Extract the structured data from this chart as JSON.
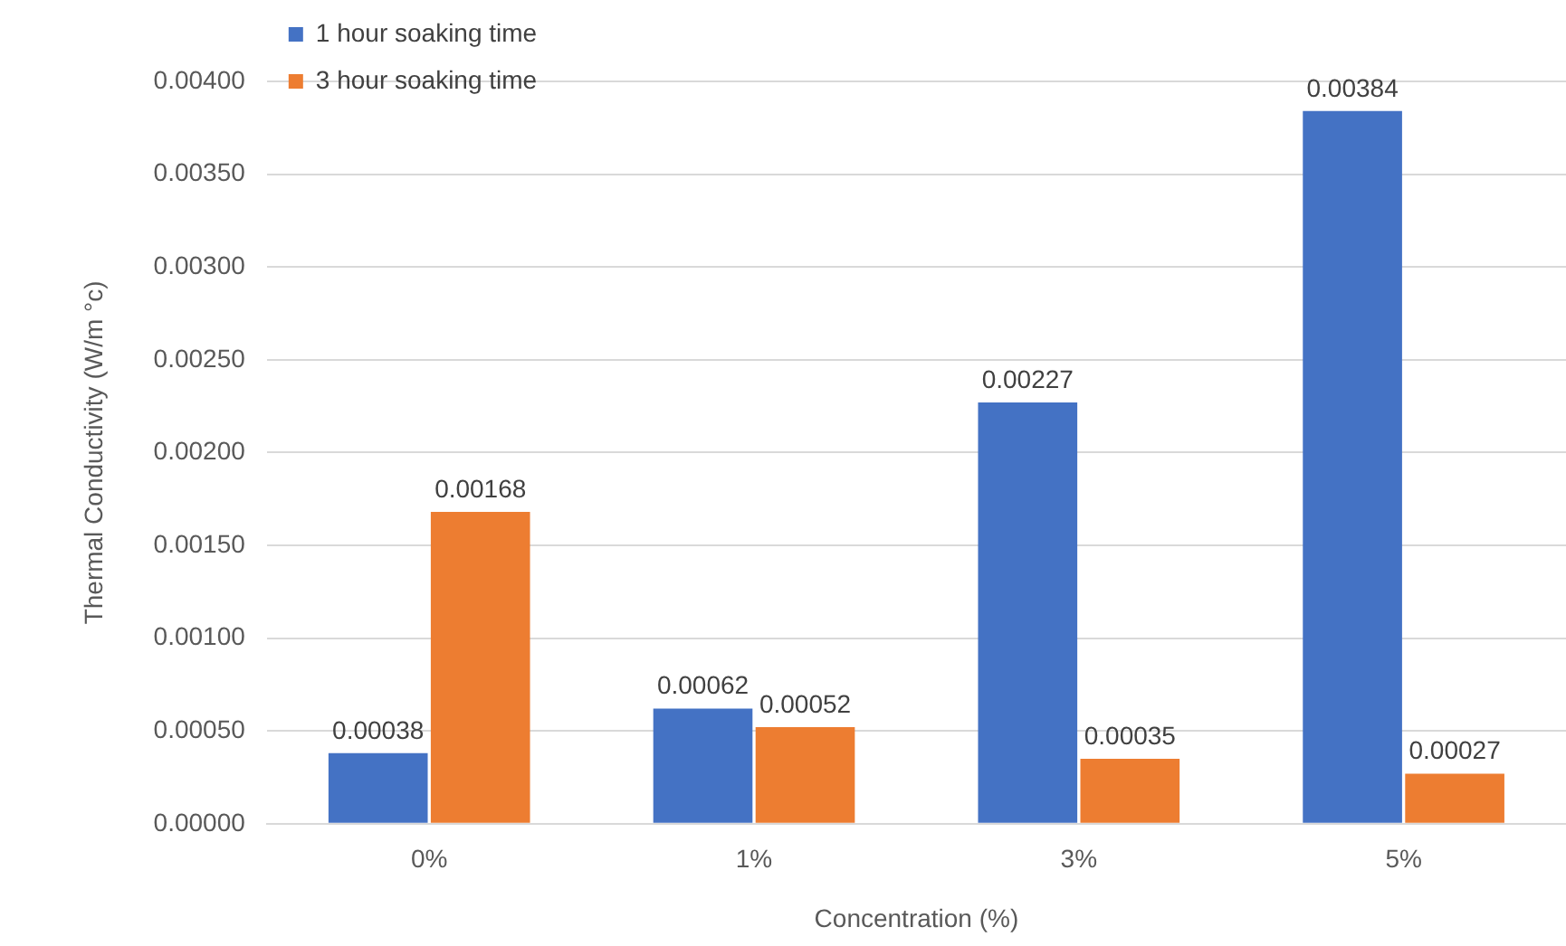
{
  "chart_data": {
    "type": "bar",
    "xlabel": "Concentration (%)",
    "ylabel": "Thermal Conductivity (W/m °c)",
    "categories": [
      "0%",
      "1%",
      "3%",
      "5%"
    ],
    "series": [
      {
        "name": "1 hour soaking time",
        "color": "#4472c4",
        "values": [
          0.00038,
          0.00062,
          0.00227,
          0.00384
        ]
      },
      {
        "name": "3 hour soaking time",
        "color": "#ed7d31",
        "values": [
          0.00168,
          0.00052,
          0.00035,
          0.00027
        ]
      }
    ],
    "ylim": [
      0,
      0.004
    ],
    "yticks": [
      {
        "value": 0,
        "label": "0.00000"
      },
      {
        "value": 0.0005,
        "label": "0.00050"
      },
      {
        "value": 0.001,
        "label": "0.00100"
      },
      {
        "value": 0.0015,
        "label": "0.00150"
      },
      {
        "value": 0.002,
        "label": "0.00200"
      },
      {
        "value": 0.0025,
        "label": "0.00250"
      },
      {
        "value": 0.003,
        "label": "0.00300"
      },
      {
        "value": 0.0035,
        "label": "0.00350"
      },
      {
        "value": 0.004,
        "label": "0.00400"
      }
    ],
    "grid": "y",
    "legend": "top left",
    "data_labels": true
  }
}
